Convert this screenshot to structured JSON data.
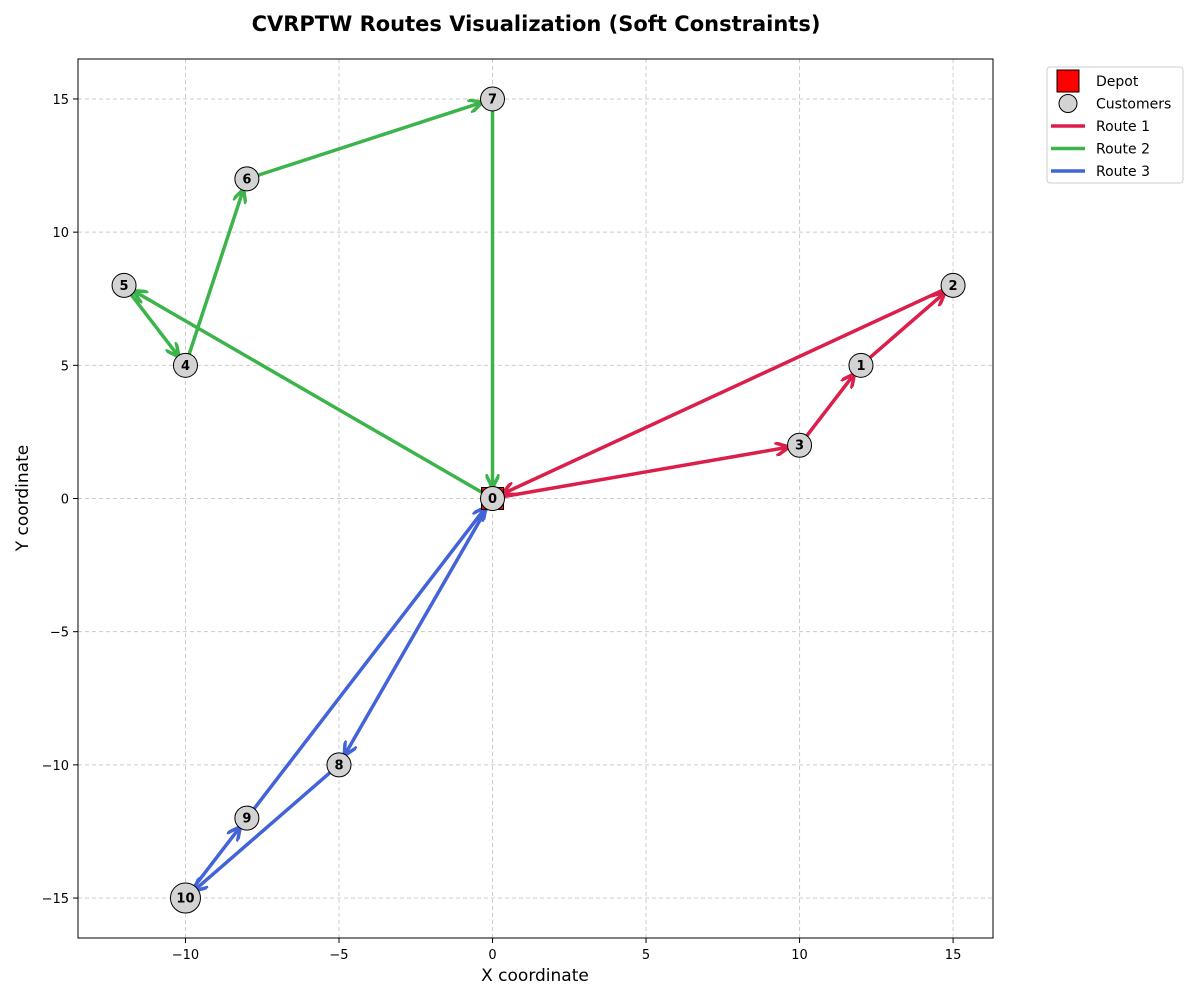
{
  "chart_data": {
    "type": "scatter",
    "title": "CVRPTW Routes Visualization (Soft Constraints)",
    "xlabel": "X coordinate",
    "ylabel": "Y coordinate",
    "xlim": [
      -13.5,
      16.3
    ],
    "ylim": [
      -16.5,
      16.5
    ],
    "xticks": [
      -10,
      -5,
      0,
      5,
      10,
      15
    ],
    "yticks": [
      -15,
      -10,
      -5,
      0,
      5,
      10,
      15
    ],
    "xtick_labels": [
      "−10",
      "−5",
      "0",
      "5",
      "10",
      "15"
    ],
    "ytick_labels": [
      "−15",
      "−10",
      "−5",
      "0",
      "5",
      "10",
      "15"
    ],
    "grid": true,
    "legend_placement": "outside-top-right",
    "depot": {
      "id": "0",
      "x": 0,
      "y": 0,
      "color": "#ff0000"
    },
    "customers": [
      {
        "id": "1",
        "x": 12,
        "y": 5
      },
      {
        "id": "2",
        "x": 15,
        "y": 8
      },
      {
        "id": "3",
        "x": 10,
        "y": 2
      },
      {
        "id": "4",
        "x": -10,
        "y": 5
      },
      {
        "id": "5",
        "x": -12,
        "y": 8
      },
      {
        "id": "6",
        "x": -8,
        "y": 12
      },
      {
        "id": "7",
        "x": 0,
        "y": 15
      },
      {
        "id": "8",
        "x": -5,
        "y": -10
      },
      {
        "id": "9",
        "x": -8,
        "y": -12
      },
      {
        "id": "10",
        "x": -10,
        "y": -15
      }
    ],
    "customer_color": "#d3d3d3",
    "routes": [
      {
        "name": "Route 1",
        "color": "#dc1e4b",
        "stops": [
          "0",
          "3",
          "1",
          "2",
          "0"
        ]
      },
      {
        "name": "Route 2",
        "color": "#3cb44b",
        "stops": [
          "0",
          "5",
          "4",
          "6",
          "7",
          "0"
        ]
      },
      {
        "name": "Route 3",
        "color": "#4363d8",
        "stops": [
          "0",
          "8",
          "10",
          "9",
          "0"
        ]
      }
    ],
    "legend": [
      {
        "label": "Depot",
        "kind": "depot"
      },
      {
        "label": "Customers",
        "kind": "customer"
      },
      {
        "label": "Route 1",
        "kind": "route",
        "route": 0
      },
      {
        "label": "Route 2",
        "kind": "route",
        "route": 1
      },
      {
        "label": "Route 3",
        "kind": "route",
        "route": 2
      }
    ]
  }
}
